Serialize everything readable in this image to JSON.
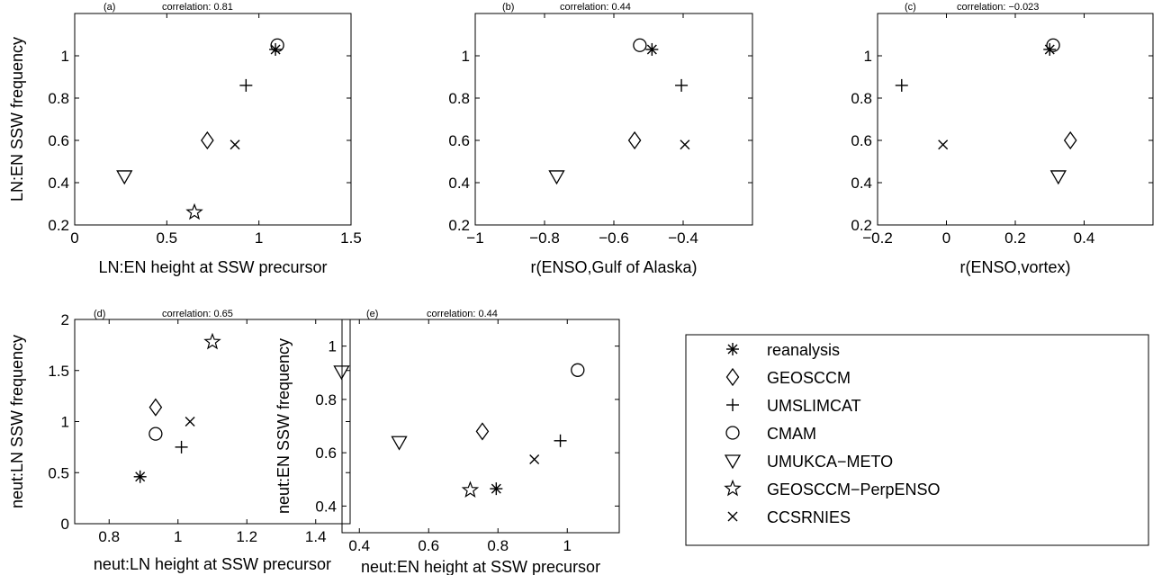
{
  "models": [
    {
      "name": "reanalysis",
      "marker": "asterisk"
    },
    {
      "name": "GEOSCCM",
      "marker": "diamond"
    },
    {
      "name": "UMSLIMCAT",
      "marker": "plus"
    },
    {
      "name": "CMAM",
      "marker": "circle"
    },
    {
      "name": "UMUKCA−METO",
      "marker": "triangle-down"
    },
    {
      "name": "GEOSCCM−PerpENSO",
      "marker": "star"
    },
    {
      "name": "CCSRNIES",
      "marker": "cross"
    }
  ],
  "chart_data": [
    {
      "type": "scatter",
      "panel": "(a)",
      "title": "correlation: 0.81",
      "xlabel": "LN:EN height at SSW precursor",
      "ylabel": "LN:EN SSW frequency",
      "xlim": [
        0,
        1.5
      ],
      "ylim": [
        0.2,
        1.2
      ],
      "xticks": [
        0,
        0.5,
        1,
        1.5
      ],
      "xtick_labels": [
        "0",
        "0.5",
        "1",
        "1.5"
      ],
      "yticks": [
        0.2,
        0.4,
        0.6,
        0.8,
        1
      ],
      "ytick_labels": [
        "0.2",
        "0.4",
        "0.6",
        "0.8",
        "1"
      ],
      "points": [
        {
          "model": "reanalysis",
          "x": 1.09,
          "y": 1.03
        },
        {
          "model": "GEOSCCM",
          "x": 0.72,
          "y": 0.6
        },
        {
          "model": "UMSLIMCAT",
          "x": 0.93,
          "y": 0.86
        },
        {
          "model": "CMAM",
          "x": 1.1,
          "y": 1.05
        },
        {
          "model": "UMUKCA−METO",
          "x": 0.27,
          "y": 0.43
        },
        {
          "model": "GEOSCCM−PerpENSO",
          "x": 0.65,
          "y": 0.26
        },
        {
          "model": "CCSRNIES",
          "x": 0.87,
          "y": 0.58
        }
      ]
    },
    {
      "type": "scatter",
      "panel": "(b)",
      "title": "correlation: 0.44",
      "xlabel": "r(ENSO,Gulf of Alaska)",
      "ylabel": "",
      "xlim": [
        -1,
        -0.2
      ],
      "ylim": [
        0.2,
        1.2
      ],
      "xticks": [
        -1,
        -0.8,
        -0.6,
        -0.4
      ],
      "xtick_labels": [
        "−1",
        "−0.8",
        "−0.6",
        "−0.4"
      ],
      "yticks": [
        0.2,
        0.4,
        0.6,
        0.8,
        1
      ],
      "ytick_labels": [
        "0.2",
        "0.4",
        "0.6",
        "0.8",
        "1"
      ],
      "points": [
        {
          "model": "reanalysis",
          "x": -0.49,
          "y": 1.03
        },
        {
          "model": "GEOSCCM",
          "x": -0.54,
          "y": 0.6
        },
        {
          "model": "UMSLIMCAT",
          "x": -0.405,
          "y": 0.86
        },
        {
          "model": "CMAM",
          "x": -0.525,
          "y": 1.05
        },
        {
          "model": "UMUKCA−METO",
          "x": -0.765,
          "y": 0.43
        },
        {
          "model": "CCSRNIES",
          "x": -0.395,
          "y": 0.58
        }
      ]
    },
    {
      "type": "scatter",
      "panel": "(c)",
      "title": "correlation: −0.023",
      "xlabel": "r(ENSO,vortex)",
      "ylabel": "",
      "xlim": [
        -0.2,
        0.6
      ],
      "ylim": [
        0.2,
        1.2
      ],
      "xticks": [
        -0.2,
        0,
        0.2,
        0.4
      ],
      "xtick_labels": [
        "−0.2",
        "0",
        "0.2",
        "0.4"
      ],
      "yticks": [
        0.2,
        0.4,
        0.6,
        0.8,
        1
      ],
      "ytick_labels": [
        "0.2",
        "0.4",
        "0.6",
        "0.8",
        "1"
      ],
      "points": [
        {
          "model": "reanalysis",
          "x": 0.3,
          "y": 1.03
        },
        {
          "model": "GEOSCCM",
          "x": 0.36,
          "y": 0.6
        },
        {
          "model": "UMSLIMCAT",
          "x": -0.13,
          "y": 0.86
        },
        {
          "model": "CMAM",
          "x": 0.31,
          "y": 1.05
        },
        {
          "model": "UMUKCA−METO",
          "x": 0.325,
          "y": 0.43
        },
        {
          "model": "CCSRNIES",
          "x": -0.01,
          "y": 0.58
        }
      ]
    },
    {
      "type": "scatter",
      "panel": "(d)",
      "title": "correlation: 0.65",
      "xlabel": "neut:LN height at SSW precursor",
      "ylabel": "neut:LN SSW frequency",
      "xlim": [
        0.7,
        1.5
      ],
      "ylim": [
        0,
        2
      ],
      "xticks": [
        0.8,
        1,
        1.2,
        1.4
      ],
      "xtick_labels": [
        "0.8",
        "1",
        "1.2",
        "1.4"
      ],
      "yticks": [
        0,
        0.5,
        1,
        1.5,
        2
      ],
      "ytick_labels": [
        "0",
        "0.5",
        "1",
        "1.5",
        "2"
      ],
      "points": [
        {
          "model": "reanalysis",
          "x": 0.89,
          "y": 0.46
        },
        {
          "model": "GEOSCCM",
          "x": 0.935,
          "y": 1.14
        },
        {
          "model": "UMSLIMCAT",
          "x": 1.01,
          "y": 0.75
        },
        {
          "model": "CMAM",
          "x": 0.935,
          "y": 0.88
        },
        {
          "model": "UMUKCA−METO",
          "x": 1.475,
          "y": 1.49
        },
        {
          "model": "GEOSCCM−PerpENSO",
          "x": 1.1,
          "y": 1.78
        },
        {
          "model": "CCSRNIES",
          "x": 1.035,
          "y": 1.0
        }
      ]
    },
    {
      "type": "scatter",
      "panel": "(e)",
      "title": "correlation: 0.44",
      "xlabel": "neut:EN height at SSW precursor",
      "ylabel": "neut:EN SSW frequency",
      "xlim": [
        0.35,
        1.15
      ],
      "ylim": [
        0.3,
        1.1
      ],
      "xticks": [
        0.4,
        0.6,
        0.8,
        1
      ],
      "xtick_labels": [
        "0.4",
        "0.6",
        "0.8",
        "1"
      ],
      "yticks": [
        0.4,
        0.6,
        0.8,
        1
      ],
      "ytick_labels": [
        "0.4",
        "0.6",
        "0.8",
        "1"
      ],
      "points": [
        {
          "model": "reanalysis",
          "x": 0.795,
          "y": 0.465
        },
        {
          "model": "GEOSCCM",
          "x": 0.755,
          "y": 0.68
        },
        {
          "model": "UMSLIMCAT",
          "x": 0.98,
          "y": 0.645
        },
        {
          "model": "CMAM",
          "x": 1.03,
          "y": 0.91
        },
        {
          "model": "UMUKCA−METO",
          "x": 0.515,
          "y": 0.64
        },
        {
          "model": "GEOSCCM−PerpENSO",
          "x": 0.72,
          "y": 0.46
        },
        {
          "model": "CCSRNIES",
          "x": 0.905,
          "y": 0.575
        }
      ]
    }
  ]
}
